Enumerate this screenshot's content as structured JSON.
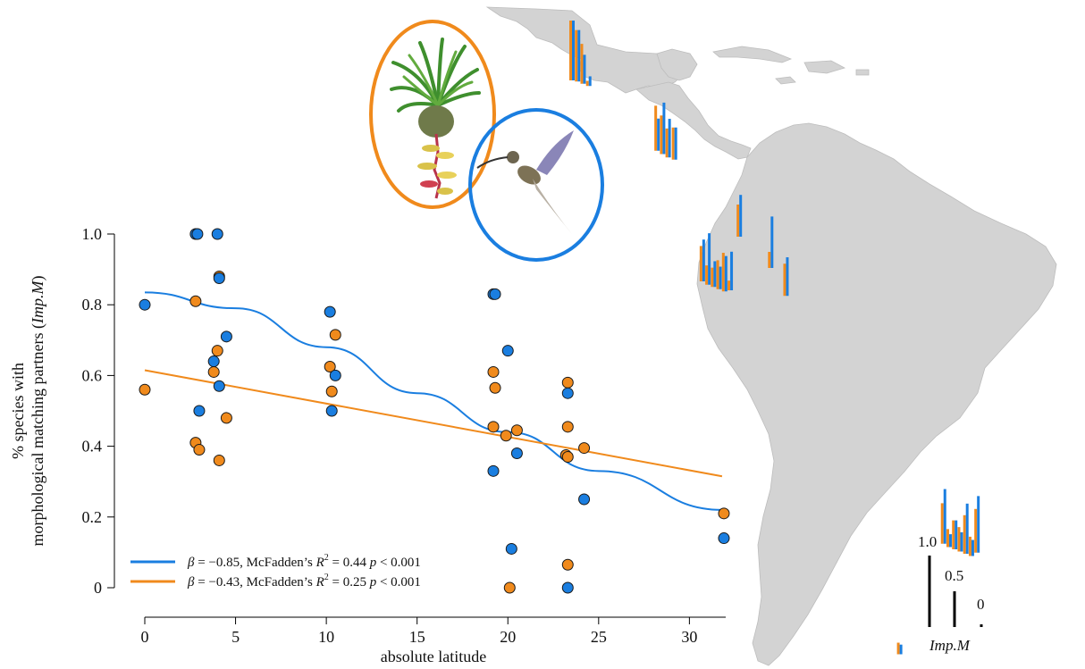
{
  "chart_data": {
    "type": "scatter",
    "xlabel": "absolute latitude",
    "ylabel_line1": "% species with",
    "ylabel_line2_prefix": "morphological matching partners (",
    "ylabel_line2_italic": "Imp.M",
    "ylabel_line2_suffix": ")",
    "xlim": [
      0,
      32
    ],
    "ylim": [
      0,
      1
    ],
    "x_ticks": [
      0,
      5,
      10,
      15,
      20,
      25,
      30
    ],
    "x_tick_labels": [
      "0",
      "5",
      "10",
      "15",
      "20",
      "25",
      "30"
    ],
    "y_ticks": [
      0,
      0.2,
      0.4,
      0.6,
      0.8,
      1.0
    ],
    "y_tick_labels": [
      "0",
      "0.2",
      "0.4",
      "0.6",
      "0.8",
      "1.0"
    ],
    "grid": false,
    "legend_position": "bottom-left",
    "colors": {
      "blue": "#1a7ee0",
      "orange": "#f08a1c"
    },
    "series": [
      {
        "color": "blue",
        "points": [
          [
            0,
            0.8
          ],
          [
            2.8,
            1.0
          ],
          [
            2.9,
            1.0
          ],
          [
            3.0,
            0.5
          ],
          [
            3.8,
            0.64
          ],
          [
            4.0,
            1.0
          ],
          [
            4.1,
            0.875
          ],
          [
            4.1,
            0.57
          ],
          [
            4.5,
            0.71
          ],
          [
            10.2,
            0.78
          ],
          [
            10.3,
            0.5
          ],
          [
            10.5,
            0.6
          ],
          [
            19.2,
            0.83
          ],
          [
            19.3,
            0.83
          ],
          [
            19.2,
            0.33
          ],
          [
            20.0,
            0.67
          ],
          [
            20.2,
            0.11
          ],
          [
            20.5,
            0.38
          ],
          [
            23.3,
            0.55
          ],
          [
            23.3,
            0.0
          ],
          [
            24.2,
            0.25
          ],
          [
            31.9,
            0.14
          ]
        ],
        "trend": [
          [
            0,
            0.835
          ],
          [
            5,
            0.79
          ],
          [
            10,
            0.68
          ],
          [
            15,
            0.55
          ],
          [
            20,
            0.44
          ],
          [
            25,
            0.33
          ],
          [
            31.8,
            0.22
          ]
        ],
        "legend_beta": "β",
        "legend_text_1": " = −0.85, McFadden’s ",
        "legend_r": "R",
        "legend_sup": "2",
        "legend_text_2": " = 0.44 ",
        "legend_p": "p",
        "legend_text_3": " < 0.001"
      },
      {
        "color": "orange",
        "points": [
          [
            0,
            0.56
          ],
          [
            2.8,
            0.81
          ],
          [
            2.8,
            0.41
          ],
          [
            3.0,
            0.39
          ],
          [
            3.8,
            0.61
          ],
          [
            4.0,
            0.67
          ],
          [
            4.1,
            0.88
          ],
          [
            4.1,
            0.36
          ],
          [
            4.5,
            0.48
          ],
          [
            10.2,
            0.625
          ],
          [
            10.3,
            0.555
          ],
          [
            10.5,
            0.715
          ],
          [
            19.2,
            0.61
          ],
          [
            19.3,
            0.565
          ],
          [
            19.2,
            0.455
          ],
          [
            19.9,
            0.43
          ],
          [
            20.1,
            0.0
          ],
          [
            20.5,
            0.445
          ],
          [
            23.3,
            0.58
          ],
          [
            23.3,
            0.455
          ],
          [
            23.2,
            0.375
          ],
          [
            23.3,
            0.37
          ],
          [
            23.3,
            0.065
          ],
          [
            24.2,
            0.395
          ],
          [
            31.9,
            0.21
          ]
        ],
        "trend": [
          [
            0,
            0.615
          ],
          [
            31.8,
            0.315
          ]
        ],
        "legend_beta": "β",
        "legend_text_1": " = −0.43, McFadden’s ",
        "legend_r": "R",
        "legend_sup": "2",
        "legend_text_2": " = 0.25 ",
        "legend_p": "p",
        "legend_text_3": " < 0.001"
      }
    ],
    "map_bars": [
      {
        "lon": -99.5,
        "lat": 19.5,
        "orange": 0.93,
        "blue": 0.93
      },
      {
        "lon": -98.7,
        "lat": 19.4,
        "orange": 0.8,
        "blue": 0.8
      },
      {
        "lon": -97.9,
        "lat": 19.2,
        "orange": 0.62,
        "blue": 0.45
      },
      {
        "lon": -97.1,
        "lat": 19.0,
        "orange": 0.08,
        "blue": 0.15
      },
      {
        "lon": -87.3,
        "lat": 13.2,
        "orange": 0.7,
        "blue": 0.5
      },
      {
        "lon": -86.5,
        "lat": 12.9,
        "orange": 0.6,
        "blue": 0.8
      },
      {
        "lon": -85.7,
        "lat": 12.6,
        "orange": 0.45,
        "blue": 0.6
      },
      {
        "lon": -84.8,
        "lat": 12.4,
        "orange": 0.5,
        "blue": 0.5
      },
      {
        "lon": -80.8,
        "lat": 1.5,
        "orange": 0.55,
        "blue": 0.65
      },
      {
        "lon": -80.0,
        "lat": 1.2,
        "orange": 0.3,
        "blue": 0.8
      },
      {
        "lon": -79.2,
        "lat": 1.0,
        "orange": 0.3,
        "blue": 0.4
      },
      {
        "lon": -78.4,
        "lat": 0.8,
        "orange": 0.45,
        "blue": 0.35
      },
      {
        "lon": -77.6,
        "lat": 0.6,
        "orange": 0.6,
        "blue": 0.55
      },
      {
        "lon": -76.8,
        "lat": 0.7,
        "orange": 0.15,
        "blue": 0.6
      },
      {
        "lon": -75.5,
        "lat": 5.5,
        "orange": 0.5,
        "blue": 0.65
      },
      {
        "lon": -71.0,
        "lat": 2.7,
        "orange": 0.25,
        "blue": 0.8
      },
      {
        "lon": -68.8,
        "lat": 0.2,
        "orange": 0.5,
        "blue": 0.6
      },
      {
        "lon": -46.2,
        "lat": -22.0,
        "orange": 0.63,
        "blue": 0.85
      },
      {
        "lon": -45.4,
        "lat": -22.3,
        "orange": 0.28,
        "blue": 0.2
      },
      {
        "lon": -44.6,
        "lat": -22.5,
        "orange": 0.45,
        "blue": 0.45
      },
      {
        "lon": -43.8,
        "lat": -22.7,
        "orange": 0.38,
        "blue": 0.3
      },
      {
        "lon": -43.0,
        "lat": -22.9,
        "orange": 0.6,
        "blue": 0.78
      },
      {
        "lon": -42.2,
        "lat": -23.1,
        "orange": 0.3,
        "blue": 0.25
      },
      {
        "lon": -41.4,
        "lat": -22.8,
        "orange": 0.68,
        "blue": 0.88
      },
      {
        "lon": -52.5,
        "lat": -31.9,
        "orange": 0.18,
        "blue": 0.15
      }
    ],
    "map_scale": {
      "labels": [
        "1.0",
        "0.5",
        "0"
      ],
      "values": [
        1.0,
        0.5,
        0.0
      ],
      "title": "Imp.M"
    }
  }
}
